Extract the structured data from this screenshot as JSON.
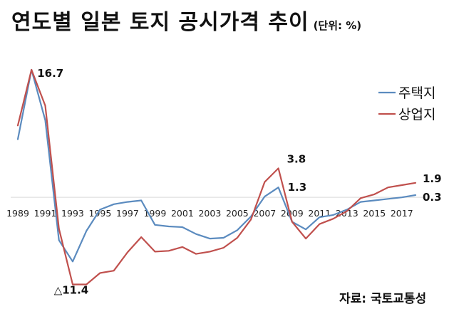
{
  "header": {
    "title": "연도별 일본 토지 공시가격 추이",
    "unit": "(단위: %)"
  },
  "source": "자료: 국토교통성",
  "chart_data": {
    "type": "line",
    "x": [
      1989,
      1990,
      1991,
      1992,
      1993,
      1994,
      1995,
      1996,
      1997,
      1998,
      1999,
      2000,
      2001,
      2002,
      2003,
      2004,
      2005,
      2006,
      2007,
      2008,
      2009,
      2010,
      2011,
      2012,
      2013,
      2014,
      2015,
      2016,
      2017,
      2018
    ],
    "x_tick_labels": [
      "1989",
      "1991",
      "1993",
      "1995",
      "1997",
      "1999",
      "2001",
      "2003",
      "2005",
      "2007",
      "2009",
      "2011",
      "2013",
      "2015",
      "2017"
    ],
    "x_tick_values": [
      1989,
      1991,
      1993,
      1995,
      1997,
      1999,
      2001,
      2003,
      2005,
      2007,
      2009,
      2011,
      2013,
      2015,
      2017
    ],
    "ylim": [
      -14,
      20
    ],
    "series": [
      {
        "name": "주택지",
        "color": "#5b8bbf",
        "values": [
          7.6,
          16.7,
          10.1,
          -5.6,
          -8.4,
          -4.4,
          -1.6,
          -0.9,
          -0.6,
          -0.4,
          -3.6,
          -3.8,
          -3.9,
          -4.8,
          -5.4,
          -5.3,
          -4.3,
          -2.5,
          0.1,
          1.3,
          -3.2,
          -4.2,
          -2.6,
          -2.3,
          -1.6,
          -0.6,
          -0.4,
          -0.2,
          0,
          0.3
        ]
      },
      {
        "name": "상업지",
        "color": "#c0504d",
        "values": [
          9.4,
          16.7,
          12.0,
          -4.1,
          -11.4,
          -11.4,
          -9.9,
          -9.6,
          -7.2,
          -5.2,
          -7.1,
          -7.0,
          -6.5,
          -7.4,
          -7.1,
          -6.6,
          -5.3,
          -2.9,
          2.0,
          3.8,
          -3.2,
          -5.4,
          -3.5,
          -2.8,
          -1.8,
          -0.1,
          0.4,
          1.3,
          1.6,
          1.9
        ]
      }
    ],
    "annotations": [
      {
        "text": "16.7",
        "series": 0,
        "index": 1
      },
      {
        "text": "3.8",
        "series": 1,
        "index": 19
      },
      {
        "text": "1.3",
        "series": 0,
        "index": 19
      },
      {
        "text": "△11.4",
        "series": 1,
        "index": 4
      },
      {
        "text": "1.9",
        "series": 1,
        "index": 29
      },
      {
        "text": "0.3",
        "series": 0,
        "index": 29
      }
    ],
    "legend_position": "right",
    "grid": false
  }
}
